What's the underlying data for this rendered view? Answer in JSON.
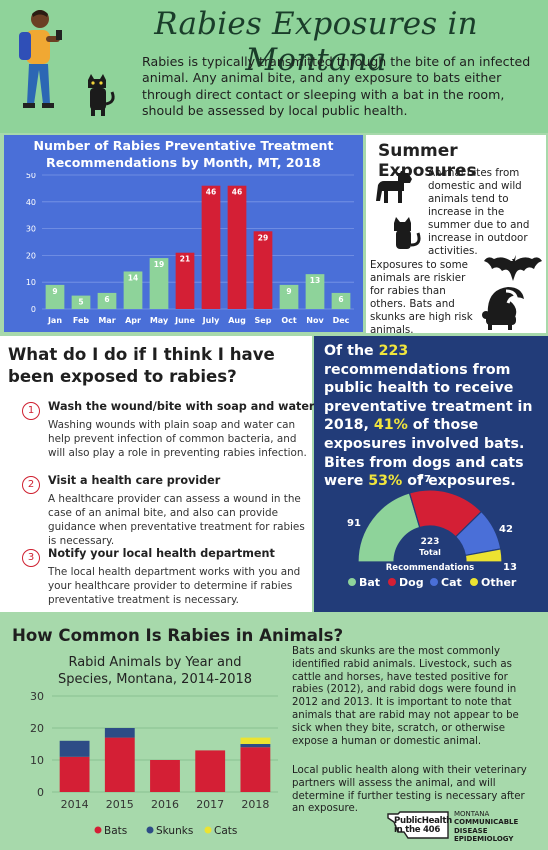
{
  "header": {
    "title": "Rabies Exposures in Montana",
    "intro": "Rabies is typically transmitted through the bite of an infected animal.  Any animal bite, and any exposure to bats either through direct contact or sleeping with a bat in the room, should be assessed by local public health."
  },
  "monthly": {
    "title_line1": "Number of Rabies Preventative Treatment",
    "title_line2": "Recommendations by Month, MT, 2018",
    "chart_data": {
      "type": "bar",
      "categories": [
        "Jan",
        "Feb",
        "Mar",
        "Apr",
        "May",
        "June",
        "July",
        "Aug",
        "Sep",
        "Oct",
        "Nov",
        "Dec"
      ],
      "values": [
        9,
        5,
        6,
        14,
        19,
        21,
        46,
        46,
        29,
        9,
        13,
        6
      ],
      "highlight": [
        false,
        false,
        false,
        false,
        false,
        true,
        true,
        true,
        true,
        false,
        false,
        false
      ],
      "ylim": [
        0,
        50
      ],
      "yticks": [
        "0",
        "10",
        "20",
        "30",
        "40",
        "50"
      ],
      "colors": {
        "normal": "#8ed39a",
        "highlight": "#d41f35"
      }
    }
  },
  "summer": {
    "title": "Summer Exposures",
    "text1": "Animal bites from domestic and wild animals tend to increase in the summer due to and increase in outdoor activities.",
    "text2": "Exposures to some animals are riskier for rabies than others. Bats and skunks are high risk animals."
  },
  "what": {
    "title": "What do I do if I think I have been exposed to rabies?",
    "steps": [
      {
        "num": "1",
        "title": "Wash the wound/bite with soap and water",
        "body": "Washing wounds with plain soap and water can help prevent infection of common bacteria, and will also play a role in preventing rabies infection."
      },
      {
        "num": "2",
        "title": "Visit a health care provider",
        "body": "A healthcare provider can assess a wound in the case of an animal bite, and also can provide guidance when preventative treatment for rabies is necessary."
      },
      {
        "num": "3",
        "title": "Notify your local health department",
        "body": "The local health department works with you and your healthcare provider to determine if rabies preventative treatment is necessary."
      }
    ]
  },
  "stats": {
    "p1": "Of the ",
    "n_total": "223",
    "p2": " recommendations from public health to receive preventative treatment in 2018, ",
    "pct_bats": "41%",
    "p3": " of those exposures involved bats.  Bites from dogs and cats were ",
    "pct_dogcat": "53%",
    "p4": " of exposures.",
    "gauge": {
      "chart_data": {
        "type": "pie",
        "categories": [
          "Bat",
          "Dog",
          "Cat",
          "Other"
        ],
        "values": [
          91,
          77,
          42,
          13
        ],
        "colors": [
          "#8ed39a",
          "#d41f35",
          "#4a6fd8",
          "#ece331"
        ],
        "total": "223",
        "center_label1": "Total",
        "center_label2": "Recommendations"
      }
    }
  },
  "animals": {
    "title": "How Common Is Rabies in Animals?",
    "chart_title_line1": "Rabid Animals by Year and",
    "chart_title_line2": "Species, Montana, 2014-2018",
    "chart_data": {
      "type": "bar",
      "stacked": true,
      "categories": [
        "2014",
        "2015",
        "2016",
        "2017",
        "2018"
      ],
      "series": [
        {
          "name": "Bats",
          "values": [
            11,
            17,
            10,
            13,
            14
          ],
          "color": "#d41f35"
        },
        {
          "name": "Skunks",
          "values": [
            5,
            3,
            0,
            0,
            1
          ],
          "color": "#2d4c86"
        },
        {
          "name": "Cats",
          "values": [
            0,
            0,
            0,
            0,
            2
          ],
          "color": "#ece331"
        }
      ],
      "ylim": [
        0,
        30
      ],
      "yticks": [
        "0",
        "10",
        "20",
        "30"
      ]
    },
    "text1": "Bats and skunks are the most commonly identified rabid animals.  Livestock, such as cattle and horses, have tested positive for rabies (2012), and rabid dogs were found in 2012 and 2013. It is important to note that animals that are rabid may not appear to be sick when they bite, scratch, or otherwise expose a human or domestic animal.",
    "text2": "Local public health along with their veterinary partners will assess the animal, and will determine if further testing is necessary after an exposure.",
    "logo1": "PublicHealth in the 406",
    "logo2_line1": "MONTANA",
    "logo2_line2": "COMMUNICABLE",
    "logo2_line3": "DISEASE EPIDEMIOLOGY"
  },
  "icons": {
    "person": "person-phone-icon",
    "cat": "cat-icon",
    "dog": "dog-icon",
    "bat": "bat-icon",
    "skunk": "skunk-icon",
    "montana": "montana-map-icon"
  }
}
